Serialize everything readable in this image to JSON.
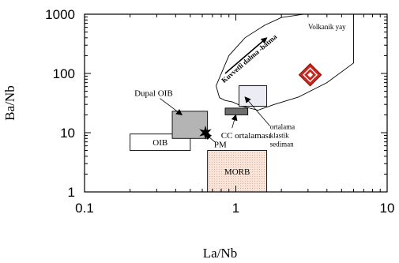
{
  "chart_data": {
    "type": "scatter",
    "xlabel": "La/Nb",
    "ylabel": "Ba/Nb",
    "xscale": "log",
    "yscale": "log",
    "xlim": [
      0.1,
      10
    ],
    "ylim": [
      1,
      1000
    ],
    "x_ticks": [
      {
        "value": 0.1,
        "label": "0.1"
      },
      {
        "value": 1,
        "label": "1"
      },
      {
        "value": 10,
        "label": "10"
      }
    ],
    "y_ticks": [
      {
        "value": 1,
        "label": "1"
      },
      {
        "value": 10,
        "label": "10"
      },
      {
        "value": 100,
        "label": "100"
      },
      {
        "value": 1000,
        "label": "1000"
      }
    ],
    "grid": false,
    "fields": [
      {
        "name": "OIB",
        "label": "OIB",
        "x": [
          0.2,
          0.5
        ],
        "y": [
          5,
          9.5
        ],
        "fill": "#ffffff"
      },
      {
        "name": "MORB",
        "label": "MORB",
        "x": [
          0.65,
          1.6
        ],
        "y": [
          1,
          5
        ],
        "fill": "#f6ddd0"
      },
      {
        "name": "Dupal OIB",
        "label": "Dupal OIB",
        "x": [
          0.38,
          0.65
        ],
        "y": [
          8,
          23
        ],
        "fill": "#b4b4b4"
      },
      {
        "name": "CC ortalaması",
        "label": "CC ortalaması",
        "x": [
          0.85,
          1.2
        ],
        "y": [
          20,
          26
        ],
        "fill": "#6e6e6e"
      },
      {
        "name": "ortalama klastik sediman",
        "label": [
          "ortalama",
          "klastik",
          "sediman"
        ],
        "x": [
          1.05,
          1.6
        ],
        "y": [
          28,
          62
        ],
        "fill": "#ececf4"
      }
    ],
    "points": [
      {
        "name": "PM",
        "label": "PM",
        "x": 0.63,
        "y": 10,
        "marker": "star"
      },
      {
        "name": "Volkanik yay sample",
        "x": 3.1,
        "y": 95,
        "marker": "cross",
        "color": "#c8281e"
      }
    ],
    "region": {
      "name": "Volkanik yay",
      "label": "Volkanik yay",
      "polygon": [
        [
          0.78,
          39
        ],
        [
          0.74,
          62
        ],
        [
          0.9,
          200
        ],
        [
          1.15,
          400
        ],
        [
          1.55,
          650
        ],
        [
          2.0,
          880
        ],
        [
          2.8,
          1000
        ],
        [
          6.0,
          1000
        ],
        [
          6.0,
          150
        ],
        [
          4.0,
          70
        ],
        [
          2.6,
          40
        ],
        [
          1.8,
          30
        ],
        [
          1.4,
          24
        ],
        [
          1.1,
          28
        ],
        [
          0.95,
          33
        ],
        [
          0.85,
          35
        ],
        [
          0.78,
          39
        ]
      ]
    },
    "trend_arrow": {
      "label": "Kuvvetli dalma -batma",
      "from": [
        0.85,
        100
      ],
      "to": [
        1.6,
        400
      ]
    },
    "annotations": [
      {
        "name": "Dupal OIB",
        "text": "Dupal OIB",
        "text_at": [
          0.3,
          38
        ],
        "arrow_to": [
          0.44,
          20
        ]
      },
      {
        "name": "CC ortalamasi",
        "text": "CC ortalaması",
        "text_at": [
          0.9,
          12
        ],
        "arrow_to": [
          1.0,
          20
        ]
      },
      {
        "name": "ortalama klastik sediman",
        "text_at": [
          1.6,
          13
        ],
        "arrow_to": [
          1.15,
          40
        ]
      },
      {
        "name": "PM",
        "text_at": [
          0.7,
          6.8
        ],
        "arrow_to": [
          0.63,
          9.5
        ]
      }
    ]
  }
}
